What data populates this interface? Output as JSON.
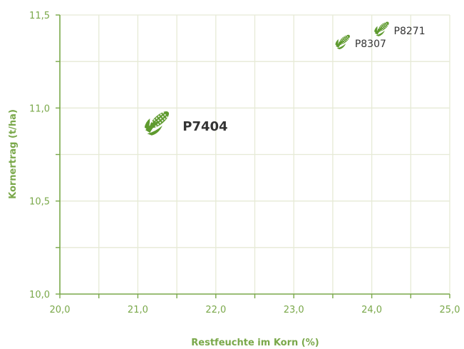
{
  "chart_data": {
    "type": "scatter",
    "xlabel": "Restfeuchte im Korn (%)",
    "ylabel": "Kornertrag (t/ha)",
    "xlim": [
      20.0,
      25.0
    ],
    "ylim": [
      10.0,
      11.5
    ],
    "x_ticks": [
      "20,0",
      "21,0",
      "22,0",
      "23,0",
      "24,0",
      "25,0"
    ],
    "y_ticks": [
      "10,0",
      "10,5",
      "11,0",
      "11,5"
    ],
    "grid": true,
    "points": [
      {
        "label": "P7404",
        "x": 21.2,
        "y": 10.91,
        "emphasis": "large"
      },
      {
        "label": "P8307",
        "x": 23.6,
        "y": 11.35,
        "emphasis": "small"
      },
      {
        "label": "P8271",
        "x": 24.1,
        "y": 11.42,
        "emphasis": "small"
      }
    ],
    "marker_icon": "corn-cob-icon",
    "colors": {
      "axis": "#7aa84a",
      "grid": "#e6ead6",
      "marker": "#5e9a2e",
      "label": "#333333"
    }
  }
}
